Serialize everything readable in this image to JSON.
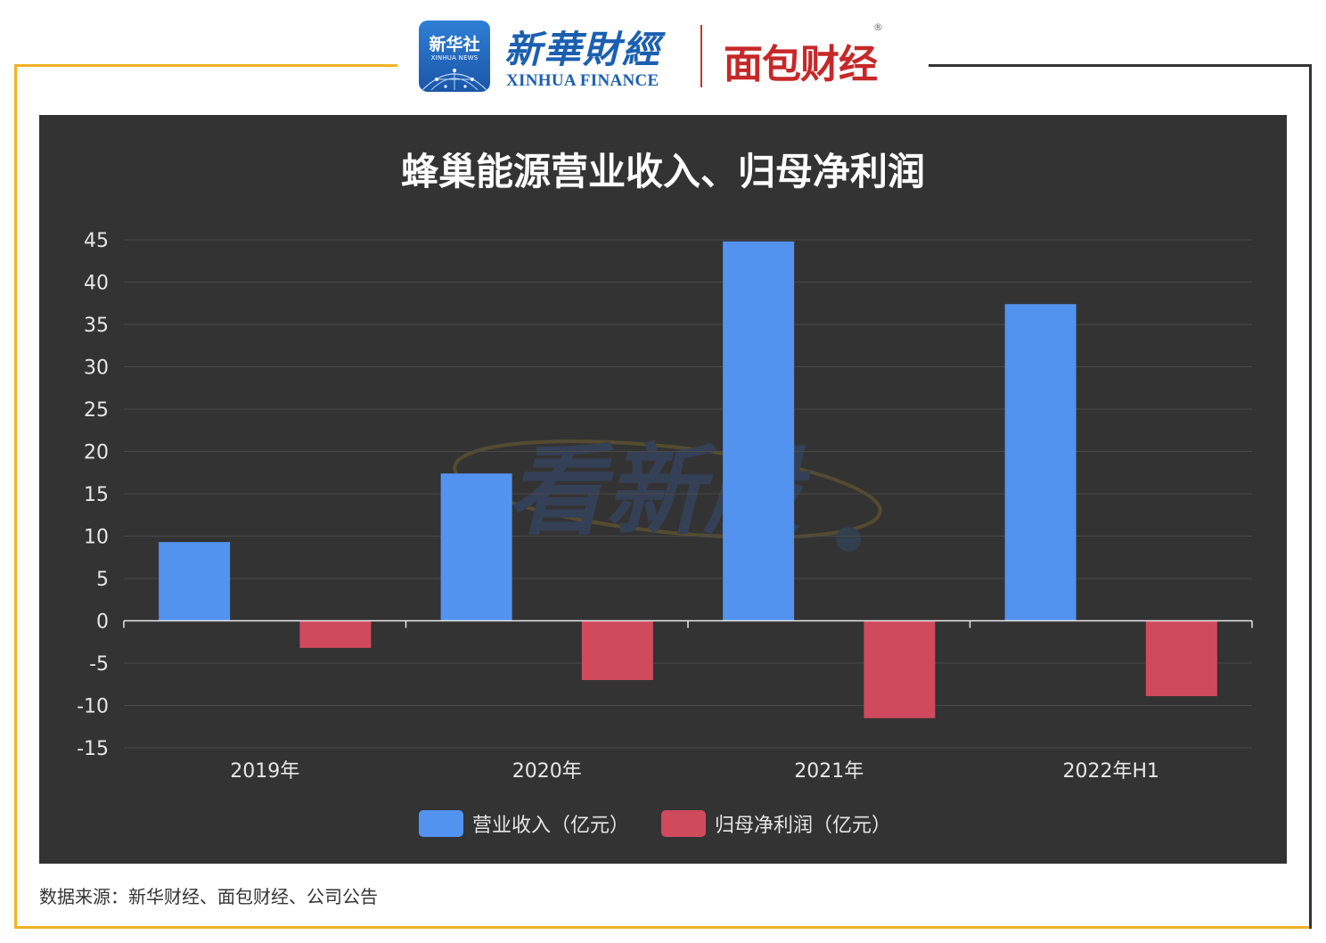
{
  "header": {
    "xinhua_badge_cn": "新华社",
    "xinhua_badge_en": "XINHUA NEWS",
    "xinhua_finance_cn": "新華財經",
    "xinhua_finance_en": "XINHUA FINANCE",
    "mianbao_logo": "面包财经",
    "mianbao_reg": "®"
  },
  "watermark": "看新股",
  "colors": {
    "background_panel": "#333333",
    "revenue": "#5393f0",
    "net_profit": "#d04a5e",
    "frame_gold": "#f0b323",
    "frame_dark": "#333333"
  },
  "chart_data": {
    "type": "bar",
    "title": "蜂巢能源营业收入、归母净利润",
    "categories": [
      "2019年",
      "2020年",
      "2021年",
      "2022年H1"
    ],
    "series": [
      {
        "name": "营业收入（亿元）",
        "color": "#5393f0",
        "values": [
          9.3,
          17.4,
          44.8,
          37.4
        ]
      },
      {
        "name": "归母净利润（亿元）",
        "color": "#d04a5e",
        "values": [
          -3.2,
          -7.0,
          -11.5,
          -8.9
        ]
      }
    ],
    "ylim": [
      -15,
      45
    ],
    "yticks": [
      45,
      40,
      35,
      30,
      25,
      20,
      15,
      10,
      5,
      0,
      -5,
      -10,
      -15
    ],
    "xlabel": "",
    "ylabel": "",
    "grid": true,
    "legend": "bottom-center"
  },
  "source_text": "数据来源：新华财经、面包财经、公司公告"
}
